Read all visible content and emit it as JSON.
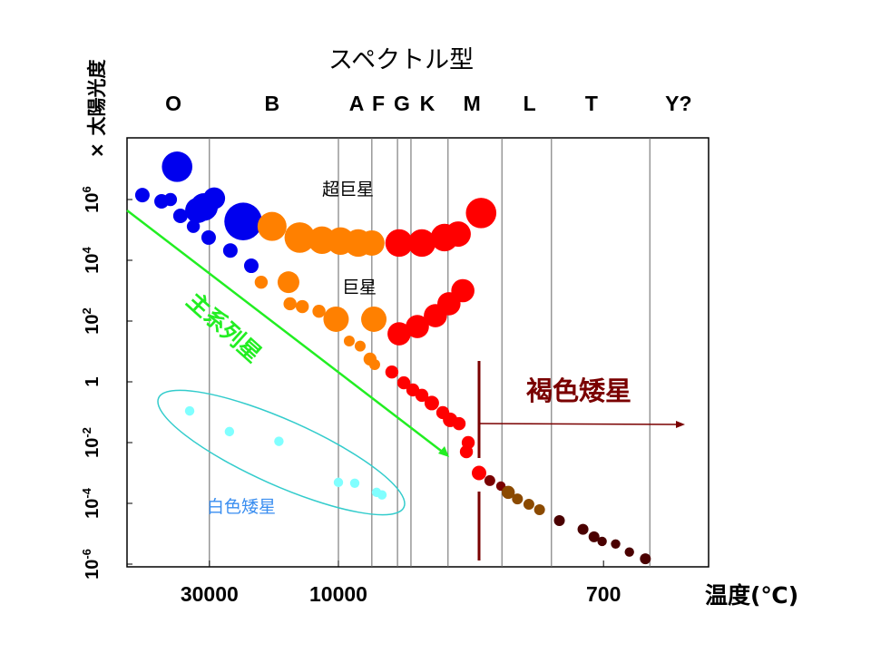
{
  "chart_data": {
    "type": "scatter",
    "title": "スペクトル型",
    "xlabel": "温度(℃)",
    "ylabel": "× 太陽光度",
    "x_scale": "log-reversed",
    "y_scale": "log",
    "ylim": [
      1e-06,
      100000000.0
    ],
    "x_ticks": [
      {
        "label": "30000",
        "value": 30000
      },
      {
        "label": "10000",
        "value": 10000
      },
      {
        "label": "700",
        "value": 700
      }
    ],
    "y_ticks": [
      {
        "base": "10",
        "sup": "6",
        "value": 1000000.0
      },
      {
        "base": "10",
        "sup": "4",
        "value": 10000.0
      },
      {
        "base": "10",
        "sup": "2",
        "value": 100.0
      },
      {
        "base": "1",
        "sup": "",
        "value": 1
      },
      {
        "base": "10",
        "sup": "-2",
        "value": 0.01
      },
      {
        "base": "10",
        "sup": "-4",
        "value": 0.0001
      },
      {
        "base": "10",
        "sup": "-6",
        "value": 1e-06
      }
    ],
    "spectral_classes": [
      {
        "label": "O",
        "temp": 40800
      },
      {
        "label": "B",
        "temp": 17600
      },
      {
        "label": "A",
        "temp": 8330
      },
      {
        "label": "F",
        "temp": 6700
      },
      {
        "label": "G",
        "temp": 5290
      },
      {
        "label": "K",
        "temp": 4100
      },
      {
        "label": "M",
        "temp": 2620
      },
      {
        "label": "L",
        "temp": 1470
      },
      {
        "label": "T",
        "temp": 790
      },
      {
        "label": "Y?",
        "temp": 330
      }
    ],
    "class_boundaries": [
      30000,
      10000,
      7150,
      5530,
      4830,
      3330,
      1940,
      1180,
      440
    ],
    "colors": {
      "blue": "#0000ee",
      "orange": "#ff8000",
      "red": "#ff0000",
      "darkred": "#7a0000",
      "brown": "#8b4a00",
      "dark": "#4a0000",
      "white_dwarf": "#80ffff",
      "main_sequence": "#22ee22",
      "ellipse": "#33cccc",
      "brown_dwarf": "#7a0000"
    },
    "annotations": {
      "supergiants": "超巨星",
      "giants": "巨星",
      "main_sequence": "主系列星",
      "brown_dwarfs": "褐色矮星",
      "white_dwarfs": "白色矮星"
    },
    "series": [
      {
        "group": "blue",
        "points": [
          [
            39500,
            12000000.0,
            4.2
          ],
          [
            53100,
            1400000.0,
            2
          ],
          [
            45100,
            870000.0,
            2
          ],
          [
            41800,
            1000000.0,
            1.8
          ],
          [
            28800,
            1100000.0,
            3
          ],
          [
            31400,
            570000.0,
            3.8
          ],
          [
            33100,
            440000.0,
            3.5
          ],
          [
            38400,
            290000.0,
            2
          ],
          [
            34400,
            130000.0,
            1.8
          ],
          [
            30200,
            56000.0,
            2
          ],
          [
            22500,
            190000.0,
            5.2
          ],
          [
            25100,
            21000.0,
            2
          ],
          [
            21000,
            6600.0,
            2
          ]
        ]
      },
      {
        "group": "orange",
        "points": [
          [
            17600,
            130000.0,
            4
          ],
          [
            13900,
            56000.0,
            4.2
          ],
          [
            11500,
            46000.0,
            3.8
          ],
          [
            9800,
            43000.0,
            3.8
          ],
          [
            8200,
            37000.0,
            3.8
          ],
          [
            7150,
            37000.0,
            3.5
          ],
          [
            19300,
            1900.0,
            1.8
          ],
          [
            15300,
            1900.0,
            3
          ],
          [
            15100,
            370,
            1.8
          ],
          [
            13600,
            300,
            1.8
          ],
          [
            11800,
            210,
            1.8
          ],
          [
            10200,
            115,
            3.5
          ],
          [
            8970,
            22,
            1.5
          ],
          [
            8040,
            15,
            1.5
          ],
          [
            7010,
            115,
            3.5
          ],
          [
            7280,
            5.6,
            1.8
          ],
          [
            6950,
            3.7,
            1.5
          ]
        ]
      },
      {
        "group": "red",
        "points": [
          [
            5440,
            37000.0,
            3.8
          ],
          [
            4330,
            37000.0,
            3.8
          ],
          [
            3450,
            56000.0,
            3.8
          ],
          [
            3010,
            73000.0,
            3.5
          ],
          [
            2390,
            360000.0,
            4.2
          ],
          [
            5440,
            38,
            3.2
          ],
          [
            4530,
            66,
            3.2
          ],
          [
            3780,
            150,
            3.2
          ],
          [
            3300,
            370,
            3.2
          ],
          [
            2870,
            1000,
            3.2
          ],
          [
            5850,
            2.1,
            1.8
          ],
          [
            5190,
            0.93,
            1.8
          ],
          [
            4740,
            0.54,
            1.8
          ],
          [
            4330,
            0.36,
            1.8
          ],
          [
            3920,
            0.2,
            2
          ],
          [
            3510,
            0.097,
            1.8
          ],
          [
            3260,
            0.056,
            2
          ],
          [
            2980,
            0.042,
            1.8
          ],
          [
            2720,
            0.01,
            1.8
          ],
          [
            2770,
            0.005,
            1.8
          ],
          [
            2440,
            0.001,
            2
          ]
        ]
      },
      {
        "group": "darkred",
        "points": [
          [
            2190,
            0.00056,
            1.5
          ],
          [
            1960,
            0.00037,
            1.3
          ]
        ]
      },
      {
        "group": "brown",
        "points": [
          [
            1820,
            0.00023,
            1.8
          ],
          [
            1660,
            0.00014,
            1.5
          ],
          [
            1480,
            9.3e-05,
            1.5
          ],
          [
            1330,
            6.2e-05,
            1.5
          ]
        ]
      },
      {
        "group": "dark",
        "points": [
          [
            1090,
            2.7e-05,
            1.5
          ],
          [
            860,
            1.4e-05,
            1.5
          ],
          [
            770,
            7.9e-06,
            1.5
          ],
          [
            710,
            5.6e-06,
            1.3
          ],
          [
            620,
            4.6e-06,
            1.3
          ],
          [
            540,
            2.5e-06,
            1.3
          ],
          [
            460,
            1.5e-06,
            1.5
          ]
        ]
      },
      {
        "group": "white_dwarf",
        "points": [
          [
            35500,
            0.11,
            1.3
          ],
          [
            25300,
            0.023,
            1.3
          ],
          [
            16600,
            0.011,
            1.3
          ],
          [
            10000,
            0.00049,
            1.3
          ],
          [
            8490,
            0.00046,
            1.3
          ],
          [
            6820,
            0.00023,
            1.3
          ],
          [
            6460,
            0.00019,
            1.3
          ]
        ]
      }
    ]
  }
}
